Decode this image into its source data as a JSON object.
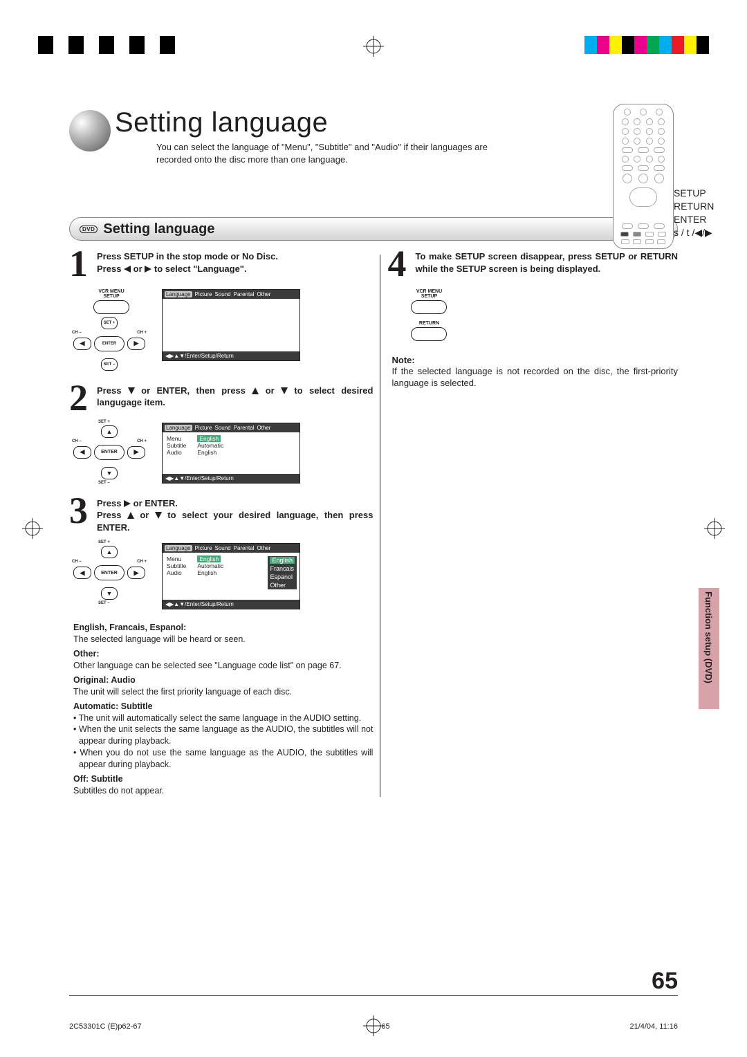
{
  "colorbar": {
    "left": [
      "#000000",
      "#ffffff",
      "#000000",
      "#ffffff",
      "#000000",
      "#ffffff",
      "#000000",
      "#ffffff",
      "#000000",
      "#ffffff"
    ],
    "right": [
      "#00aeef",
      "#ec008c",
      "#fff200",
      "#000000",
      "#ec008c",
      "#00a651",
      "#00aeef",
      "#ed1c24",
      "#fff200",
      "#000000"
    ]
  },
  "title": "Setting language",
  "intro": "You can select the language of \"Menu\", \"Subtitle\" and \"Audio\" if their languages are recorded onto the disc more than one language.",
  "remote_labels": [
    "SETUP",
    "RETURN",
    "ENTER",
    "s / t /◀/▶"
  ],
  "section_title": "Setting language",
  "dvd_badge": "DVD",
  "steps": {
    "s1": {
      "num": "1",
      "line1": "Press SETUP in the stop mode or No Disc.",
      "line2a": "Press ",
      "line2b": " or ",
      "line2c": " to select \"Language\"."
    },
    "s2": {
      "num": "2",
      "line1a": "Press ",
      "line1b": " or ENTER, then press ",
      "line1c": " or ",
      "line1d": " to select desired langugage item."
    },
    "s3": {
      "num": "3",
      "line1a": "Press ",
      "line1b": " or ENTER.",
      "line2a": "Press ",
      "line2b": " or ",
      "line2c": " to select your desired language, then press ENTER."
    },
    "s4": {
      "num": "4",
      "text": "To make SETUP screen disappear, press SETUP or RETURN while the SETUP screen is being displayed."
    }
  },
  "screen": {
    "tabs": [
      "Language",
      "Picture",
      "Sound",
      "Parental",
      "Other"
    ],
    "footer": "◀▶▲▼/Enter/Setup/Return",
    "menu_rows": [
      [
        "Menu",
        "English"
      ],
      [
        "Subtitle",
        "Automatic"
      ],
      [
        "Audio",
        "English"
      ]
    ],
    "dropdown": [
      "English",
      "Francais",
      "Espanol",
      "Other"
    ]
  },
  "cluster_labels": {
    "vcr_menu": "VCR MENU",
    "setup": "SETUP",
    "return": "RETURN",
    "setplus": "SET +",
    "setminus": "SET –",
    "chminus": "CH –",
    "chplus": "CH +",
    "enter": "ENTER"
  },
  "desc": {
    "efs_h": "English, Francais, Espanol:",
    "efs_t": "The selected language will be heard or seen.",
    "other_h": "Other:",
    "other_t": "Other language can be selected see \"Language code list\" on page 67.",
    "orig_h": "Original: Audio",
    "orig_t": "The unit will select the first priority language of each disc.",
    "auto_h": "Automatic: Subtitle",
    "auto_b1": "The unit will automatically select the same language in the AUDIO setting.",
    "auto_b2": "When the unit selects the same language as the AUDIO, the subtitles  will not appear during playback.",
    "auto_b3": "When you do not use the same language as the AUDIO, the subtitles  will appear during playback.",
    "off_h": "Off: Subtitle",
    "off_t": "Subtitles do not appear."
  },
  "note_h": "Note:",
  "note_t": "If the selected language is not recorded on the disc, the first-priority language is selected.",
  "side_tab": "Function setup (DVD)",
  "page_num": "65",
  "footer": {
    "left": "2C53301C (E)p62-67",
    "mid": "65",
    "right": "21/4/04, 11:16"
  }
}
